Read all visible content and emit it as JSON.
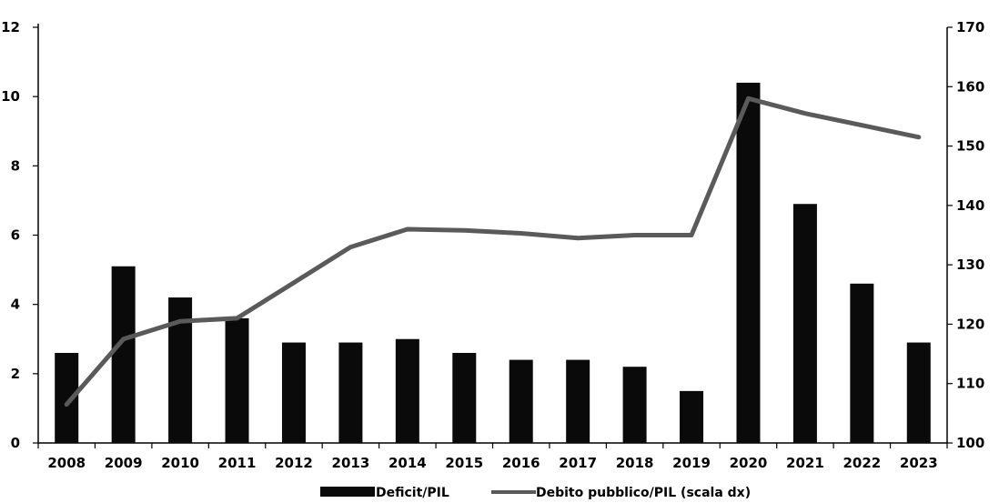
{
  "chart_data": {
    "type": "bar",
    "categories": [
      "2008",
      "2009",
      "2010",
      "2011",
      "2012",
      "2013",
      "2014",
      "2015",
      "2016",
      "2017",
      "2018",
      "2019",
      "2020",
      "2021",
      "2022",
      "2023"
    ],
    "series": [
      {
        "name": "Deficit/PIL",
        "type": "bar",
        "axis": "left",
        "values": [
          2.6,
          5.1,
          4.2,
          3.6,
          2.9,
          2.9,
          3.0,
          2.6,
          2.4,
          2.4,
          2.2,
          1.5,
          10.4,
          6.9,
          4.6,
          2.9
        ]
      },
      {
        "name": "Debito pubblico/PIL (scala dx)",
        "type": "line",
        "axis": "right",
        "values": [
          106.5,
          117.5,
          120.5,
          121.0,
          127.0,
          133.0,
          136.0,
          135.8,
          135.3,
          134.5,
          135.0,
          135.0,
          158.0,
          155.5,
          153.5,
          151.5
        ]
      }
    ],
    "y_left": {
      "min": 0,
      "max": 12,
      "ticks": [
        0,
        2,
        4,
        6,
        8,
        10,
        12
      ]
    },
    "y_right": {
      "min": 100,
      "max": 170,
      "ticks": [
        100,
        110,
        120,
        130,
        140,
        150,
        160,
        170
      ]
    },
    "grid": false,
    "legend_position": "bottom",
    "colors": {
      "bar": "#0a0a0a",
      "line": "#5a5a5a"
    }
  }
}
